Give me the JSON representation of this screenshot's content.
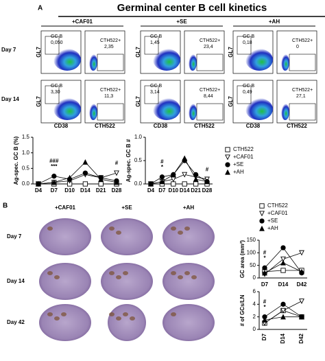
{
  "title": "Germinal center B cell kinetics",
  "panel_a": {
    "label": "A",
    "columns": [
      "+CAF01",
      "+SE",
      "+AH"
    ],
    "rows": [
      "Day 7",
      "Day 14"
    ],
    "gc_gate_label": "GC B",
    "ag_gate_label": "CTH522+",
    "gc_values": [
      [
        "0,050",
        "1,45",
        "0,18"
      ],
      [
        "3,30",
        "3,14",
        "0,49"
      ]
    ],
    "ag_values": [
      [
        "2,35",
        "23,4",
        "0"
      ],
      [
        "11,3",
        "8,44",
        "27,1"
      ]
    ],
    "y_axis": "GL7",
    "x_axis_left": "CD38",
    "x_axis_right": "CTH522"
  },
  "panel_b": {
    "label": "B",
    "columns": [
      "+CAF01",
      "+SE",
      "+AH"
    ],
    "rows": [
      "Day 7",
      "Day 14",
      "Day 42"
    ]
  },
  "chart_data": [
    {
      "type": "line",
      "y_label": "Ag-spec. GC B (%)",
      "categories": [
        "D4",
        "D7",
        "D10",
        "D14",
        "D21",
        "D28"
      ],
      "ylim": [
        0,
        1.5
      ],
      "yticks": [
        {
          "value": 0,
          "label": "0.0"
        },
        0.5,
        {
          "value": 1,
          "label": "1.0"
        },
        1.5
      ],
      "annotations": [
        {
          "text": "###",
          "at": 1,
          "row": 2
        },
        {
          "text": "***",
          "at": 1,
          "row": 1
        },
        {
          "text": "#",
          "at": 5,
          "row": 1
        }
      ],
      "series": [
        {
          "name": "CTH522",
          "marker": "square-open",
          "color": "#000",
          "values": [
            0,
            0,
            0,
            0,
            0,
            0
          ]
        },
        {
          "name": "+CAF01",
          "marker": "tri-down-open",
          "color": "#000",
          "values": [
            0,
            0.05,
            0.1,
            0.3,
            0.2,
            0.35
          ]
        },
        {
          "name": "+SE",
          "marker": "circle",
          "color": "#000",
          "values": [
            0,
            0.25,
            0.15,
            0.35,
            0.2,
            0.1
          ]
        },
        {
          "name": "+AH",
          "marker": "tri-up",
          "color": "#000",
          "values": [
            0,
            0.05,
            0.2,
            0.7,
            0.15,
            0.05
          ]
        }
      ]
    },
    {
      "type": "line",
      "y_label": "Ag-spec. GC B #",
      "categories": [
        "D4",
        "D7",
        "D10",
        "D14",
        "D21",
        "D28"
      ],
      "ylim": [
        0,
        1
      ],
      "yticks": [
        {
          "value": 0,
          "label": "0.0"
        },
        0.5,
        {
          "value": 1,
          "label": "1.0"
        }
      ],
      "annotations": [
        {
          "text": "#",
          "at": 1,
          "row": 2
        },
        {
          "text": "*",
          "at": 1,
          "row": 1
        },
        {
          "text": "#",
          "at": 5,
          "row": 1
        }
      ],
      "series": [
        {
          "name": "CTH522",
          "marker": "square-open",
          "color": "#000",
          "values": [
            0,
            0,
            0,
            0,
            0,
            0
          ]
        },
        {
          "name": "+CAF01",
          "marker": "tri-down-open",
          "color": "#000",
          "values": [
            0,
            0.05,
            0.1,
            0.2,
            0.15,
            0.1
          ]
        },
        {
          "name": "+SE",
          "marker": "circle",
          "color": "#000",
          "values": [
            0,
            0.15,
            0.2,
            0.5,
            0.2,
            0.05
          ]
        },
        {
          "name": "+AH",
          "marker": "tri-up",
          "color": "#000",
          "values": [
            0,
            0.05,
            0.2,
            0.55,
            0.1,
            0.05
          ]
        }
      ]
    },
    {
      "type": "line",
      "y_label": "GC area (mm²)",
      "categories": [
        "D7",
        "D14",
        "D42"
      ],
      "ylim": [
        0,
        150
      ],
      "yticks": [
        0,
        50,
        100,
        150
      ],
      "annotations": [
        {
          "text": "#",
          "at": 0,
          "row": 2
        },
        {
          "text": "*",
          "at": 0,
          "row": 1
        }
      ],
      "series": [
        {
          "name": "CTH522",
          "marker": "square-open",
          "color": "#000",
          "values": [
            25,
            30,
            30
          ]
        },
        {
          "name": "+CAF01",
          "marker": "tri-down-open",
          "color": "#000",
          "values": [
            15,
            75,
            100
          ]
        },
        {
          "name": "+SE",
          "marker": "circle",
          "color": "#000",
          "values": [
            40,
            120,
            20
          ]
        },
        {
          "name": "+AH",
          "marker": "tri-up",
          "color": "#000",
          "values": [
            20,
            60,
            25
          ]
        }
      ]
    },
    {
      "type": "line",
      "y_label": "# of GCs/LN",
      "categories": [
        "D7",
        "D14",
        "D42"
      ],
      "ylim": [
        0,
        6
      ],
      "yticks": [
        0,
        2,
        4,
        6
      ],
      "annotations": [
        {
          "text": "#",
          "at": 0,
          "row": 2
        },
        {
          "text": "*",
          "at": 0,
          "row": 1
        }
      ],
      "series": [
        {
          "name": "CTH522",
          "marker": "square-open",
          "color": "#000",
          "values": [
            1,
            3,
            2
          ]
        },
        {
          "name": "+CAF01",
          "marker": "tri-down-open",
          "color": "#000",
          "values": [
            1,
            3,
            4.5
          ]
        },
        {
          "name": "+SE",
          "marker": "circle",
          "color": "#000",
          "values": [
            2,
            4,
            2
          ]
        },
        {
          "name": "+AH",
          "marker": "tri-up",
          "color": "#000",
          "values": [
            1.5,
            2,
            2
          ]
        }
      ]
    }
  ]
}
